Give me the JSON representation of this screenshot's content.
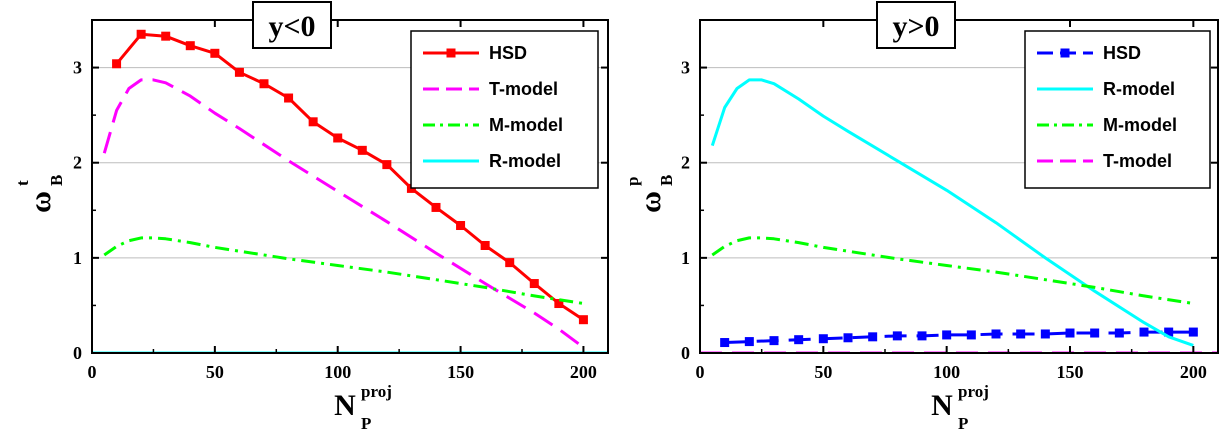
{
  "chart_data": [
    {
      "type": "line",
      "tag": "y<0",
      "xlabel": "N",
      "xlabel_sub": "P",
      "xlabel_sup": "proj",
      "ylabel": "ω",
      "ylabel_sub": "B",
      "ylabel_sup": "t",
      "xlim": [
        0,
        210
      ],
      "ylim": [
        0,
        3.5
      ],
      "xticks": [
        0,
        50,
        100,
        150,
        200
      ],
      "yticks": [
        0,
        1,
        2,
        3
      ],
      "grid": "horizontal",
      "legend_position": "top-right",
      "series": [
        {
          "name": "HSD",
          "color": "#ff0000",
          "style": "solid",
          "marker": "square",
          "x": [
            10,
            20,
            30,
            40,
            50,
            60,
            70,
            80,
            90,
            100,
            110,
            120,
            130,
            140,
            150,
            160,
            170,
            180,
            190,
            200
          ],
          "y": [
            3.04,
            3.35,
            3.33,
            3.23,
            3.15,
            2.95,
            2.83,
            2.68,
            2.43,
            2.26,
            2.13,
            1.98,
            1.73,
            1.53,
            1.34,
            1.13,
            0.95,
            0.73,
            0.52,
            0.35
          ]
        },
        {
          "name": "T-model",
          "color": "#ff00ff",
          "style": "dash",
          "marker": "none",
          "x": [
            5,
            10,
            15,
            20,
            25,
            30,
            40,
            50,
            60,
            80,
            100,
            120,
            140,
            160,
            180,
            190,
            200
          ],
          "y": [
            2.1,
            2.55,
            2.78,
            2.87,
            2.87,
            2.84,
            2.7,
            2.52,
            2.36,
            2.02,
            1.7,
            1.38,
            1.05,
            0.73,
            0.42,
            0.25,
            0.06
          ]
        },
        {
          "name": "M-model",
          "color": "#00ff00",
          "style": "dashdot",
          "marker": "none",
          "x": [
            5,
            10,
            15,
            20,
            25,
            30,
            40,
            50,
            60,
            80,
            100,
            120,
            140,
            160,
            180,
            200
          ],
          "y": [
            1.03,
            1.12,
            1.18,
            1.21,
            1.21,
            1.2,
            1.16,
            1.11,
            1.07,
            0.99,
            0.92,
            0.85,
            0.77,
            0.69,
            0.6,
            0.52
          ]
        },
        {
          "name": "R-model",
          "color": "#00ffff",
          "style": "solid",
          "marker": "none",
          "x": [
            0,
            210
          ],
          "y": [
            0.0,
            0.0
          ]
        }
      ]
    },
    {
      "type": "line",
      "tag": "y>0",
      "xlabel": "N",
      "xlabel_sub": "P",
      "xlabel_sup": "proj",
      "ylabel": "ω",
      "ylabel_sub": "B",
      "ylabel_sup": "p",
      "xlim": [
        0,
        210
      ],
      "ylim": [
        0,
        3.5
      ],
      "xticks": [
        0,
        50,
        100,
        150,
        200
      ],
      "yticks": [
        0,
        1,
        2,
        3
      ],
      "grid": "horizontal",
      "legend_position": "top-right",
      "series": [
        {
          "name": "HSD",
          "color": "#0000ff",
          "style": "dash",
          "marker": "square",
          "x": [
            10,
            20,
            30,
            40,
            50,
            60,
            70,
            80,
            90,
            100,
            110,
            120,
            130,
            140,
            150,
            160,
            170,
            180,
            190,
            200
          ],
          "y": [
            0.11,
            0.12,
            0.13,
            0.14,
            0.15,
            0.16,
            0.17,
            0.18,
            0.18,
            0.19,
            0.19,
            0.2,
            0.2,
            0.2,
            0.21,
            0.21,
            0.21,
            0.22,
            0.22,
            0.22
          ]
        },
        {
          "name": "R-model",
          "color": "#00ffff",
          "style": "solid",
          "marker": "none",
          "x": [
            5,
            10,
            15,
            20,
            25,
            30,
            40,
            50,
            60,
            80,
            100,
            120,
            140,
            160,
            180,
            190,
            200
          ],
          "y": [
            2.18,
            2.58,
            2.78,
            2.87,
            2.87,
            2.83,
            2.67,
            2.49,
            2.33,
            2.02,
            1.71,
            1.37,
            1.0,
            0.65,
            0.32,
            0.17,
            0.08
          ]
        },
        {
          "name": "M-model",
          "color": "#00ff00",
          "style": "dashdot",
          "marker": "none",
          "x": [
            5,
            10,
            15,
            20,
            25,
            30,
            40,
            50,
            60,
            80,
            100,
            120,
            140,
            160,
            180,
            200
          ],
          "y": [
            1.03,
            1.12,
            1.18,
            1.21,
            1.21,
            1.2,
            1.16,
            1.11,
            1.07,
            0.99,
            0.92,
            0.85,
            0.77,
            0.69,
            0.6,
            0.52
          ]
        },
        {
          "name": "T-model",
          "color": "#ff00ff",
          "style": "dash",
          "marker": "none",
          "x": [
            0,
            210
          ],
          "y": [
            0.0,
            0.0
          ]
        }
      ]
    }
  ]
}
